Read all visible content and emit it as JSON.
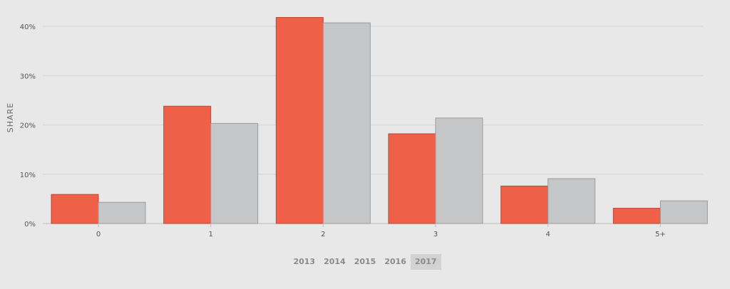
{
  "chart_data": {
    "type": "bar",
    "ylabel": "SHARE",
    "categories": [
      "0",
      "1",
      "2",
      "3",
      "4",
      "5+"
    ],
    "ylim": [
      0,
      45
    ],
    "yticks": [
      "0%",
      "10%",
      "20%",
      "30%",
      "40%"
    ],
    "grid": true,
    "series": [
      {
        "color": "#ee6048",
        "values": [
          5.9,
          23.8,
          41.8,
          18.2,
          7.6,
          3.1
        ]
      },
      {
        "color": "#c5c6c8",
        "values": [
          4.3,
          20.3,
          40.7,
          21.4,
          9.1,
          4.6
        ]
      }
    ]
  },
  "years": {
    "items": [
      "2013",
      "2014",
      "2015",
      "2016",
      "2017"
    ],
    "selected": "2017"
  }
}
